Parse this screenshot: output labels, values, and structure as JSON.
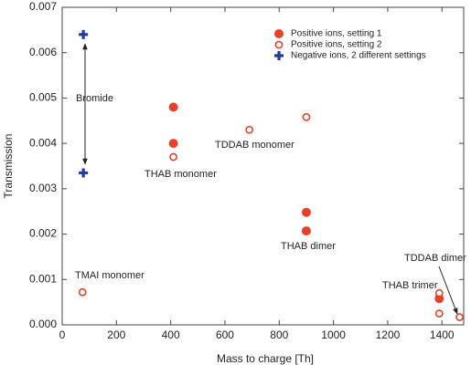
{
  "chart_data": {
    "type": "scatter",
    "xlabel": "Mass to charge [Th]",
    "ylabel": "Transmission",
    "xlim": [
      0,
      1480
    ],
    "ylim": [
      0,
      0.007
    ],
    "xticks": [
      0,
      200,
      400,
      600,
      800,
      1000,
      1200,
      1400
    ],
    "yticks": [
      {
        "value": 0,
        "label": "0.000"
      },
      {
        "value": 0.001,
        "label": "0.001"
      },
      {
        "value": 0.002,
        "label": "0.002"
      },
      {
        "value": 0.003,
        "label": "0.003"
      },
      {
        "value": 0.004,
        "label": "0.004"
      },
      {
        "value": 0.005,
        "label": "0.005"
      },
      {
        "value": 0.006,
        "label": "0.006"
      },
      {
        "value": 0.007,
        "label": "0.007"
      }
    ],
    "legend": "upper right",
    "series": [
      {
        "name": "Positive ions, setting 1",
        "color": "#e8412a",
        "marker": "filled-circle",
        "x": [
          410,
          410,
          900,
          900,
          1390
        ],
        "values": [
          0.0048,
          0.004,
          0.00248,
          0.00207,
          0.00058
        ]
      },
      {
        "name": "Positive ions, setting 2",
        "color": "#e8412a",
        "marker": "open-circle",
        "x": [
          75,
          410,
          690,
          900,
          1390,
          1390,
          1465
        ],
        "values": [
          0.00072,
          0.0037,
          0.0043,
          0.00458,
          0.0007,
          0.00025,
          0.00017
        ]
      },
      {
        "name": "Negative ions, 2 different settings",
        "color": "#1f3c99",
        "marker": "plus",
        "x": [
          78,
          78
        ],
        "values": [
          0.0064,
          0.00335
        ]
      }
    ],
    "annotations": [
      "Bromide",
      "THAB monomer",
      "TDDAB monomer",
      "THAB dimer",
      "TMAI monomer",
      "THAB trimer",
      "TDDAB dimer"
    ]
  }
}
